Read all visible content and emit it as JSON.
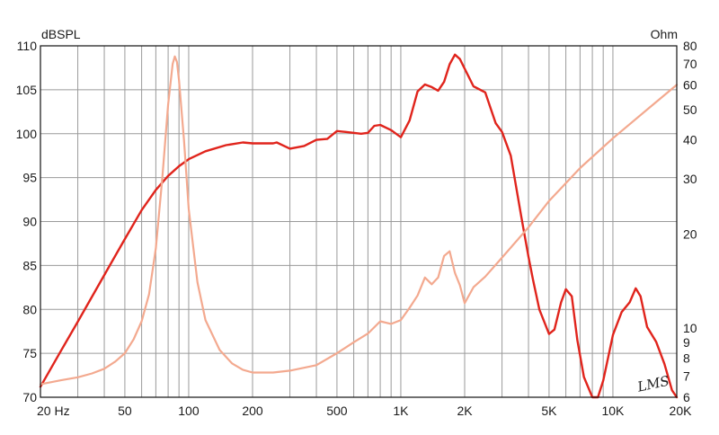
{
  "chart_data": {
    "type": "line",
    "left_axis_unit": "dBSPL",
    "right_axis_unit": "Ohm",
    "x_scale": "log",
    "xlim": [
      20,
      20000
    ],
    "ylim": [
      70,
      110
    ],
    "y2lim": [
      6,
      80
    ],
    "y2_scale": "log",
    "grid": true,
    "x_ticks": [
      {
        "v": 20,
        "label": "20  Hz"
      },
      {
        "v": 50,
        "label": "50"
      },
      {
        "v": 100,
        "label": "100"
      },
      {
        "v": 200,
        "label": "200"
      },
      {
        "v": 500,
        "label": "500"
      },
      {
        "v": 1000,
        "label": "1K"
      },
      {
        "v": 2000,
        "label": "2K"
      },
      {
        "v": 5000,
        "label": "5K"
      },
      {
        "v": 10000,
        "label": "10K"
      },
      {
        "v": 20000,
        "label": "20K"
      }
    ],
    "y_ticks": [
      {
        "v": 110,
        "label": "110"
      },
      {
        "v": 105,
        "label": "105"
      },
      {
        "v": 100,
        "label": "100"
      },
      {
        "v": 95,
        "label": "95"
      },
      {
        "v": 90,
        "label": "90"
      },
      {
        "v": 85,
        "label": "85"
      },
      {
        "v": 80,
        "label": "80"
      },
      {
        "v": 75,
        "label": "75"
      },
      {
        "v": 70,
        "label": "70"
      }
    ],
    "y2_ticks": [
      {
        "v": 80,
        "label": "80"
      },
      {
        "v": 70,
        "label": "70"
      },
      {
        "v": 60,
        "label": "60"
      },
      {
        "v": 50,
        "label": "50"
      },
      {
        "v": 40,
        "label": "40"
      },
      {
        "v": 30,
        "label": "30"
      },
      {
        "v": 20,
        "label": "20"
      },
      {
        "v": 10,
        "label": "10"
      },
      {
        "v": 9,
        "label": "9"
      },
      {
        "v": 8,
        "label": "8"
      },
      {
        "v": 7,
        "label": "7"
      },
      {
        "v": 6,
        "label": "6"
      }
    ],
    "series": [
      {
        "axis": "left",
        "color": "#e0241c",
        "x": [
          20,
          25,
          30,
          40,
          50,
          60,
          70,
          80,
          90,
          100,
          120,
          150,
          180,
          200,
          250,
          260,
          300,
          350,
          400,
          450,
          500,
          550,
          650,
          700,
          750,
          800,
          900,
          1000,
          1100,
          1200,
          1300,
          1400,
          1500,
          1600,
          1700,
          1800,
          1900,
          2000,
          2200,
          2500,
          2800,
          3000,
          3300,
          3700,
          4000,
          4200,
          4500,
          5000,
          5300,
          5700,
          6000,
          6400,
          6800,
          7300,
          8000,
          8500,
          9000,
          10000,
          11000,
          12000,
          12800,
          13500,
          14500,
          16000,
          17500,
          19000,
          20000
        ],
        "values": [
          71.2,
          75.3,
          78.6,
          83.9,
          88.0,
          91.3,
          93.6,
          95.2,
          96.3,
          97.1,
          98.0,
          98.7,
          99.0,
          98.9,
          98.9,
          99.0,
          98.3,
          98.6,
          99.3,
          99.4,
          100.3,
          100.2,
          100.0,
          100.1,
          100.9,
          101.0,
          100.4,
          99.6,
          101.5,
          104.8,
          105.6,
          105.3,
          104.9,
          105.9,
          107.9,
          109.0,
          108.5,
          107.4,
          105.4,
          104.7,
          101.2,
          100.2,
          97.5,
          90.5,
          86.0,
          83.4,
          80.0,
          77.2,
          77.7,
          80.8,
          82.3,
          81.5,
          76.5,
          72.3,
          70.0,
          70.0,
          71.9,
          77.1,
          79.7,
          80.8,
          82.4,
          81.5,
          78.0,
          76.3,
          73.8,
          70.8,
          70.0
        ]
      },
      {
        "axis": "right",
        "color": "#f3a98f",
        "x": [
          20,
          25,
          30,
          35,
          40,
          45,
          50,
          55,
          60,
          65,
          70,
          75,
          80,
          84,
          86,
          88,
          90,
          95,
          100,
          110,
          120,
          140,
          160,
          180,
          200,
          250,
          300,
          400,
          500,
          600,
          700,
          800,
          900,
          1000,
          1100,
          1200,
          1300,
          1400,
          1500,
          1600,
          1700,
          1800,
          1900,
          2000,
          2200,
          2500,
          3000,
          4000,
          5000,
          7000,
          10000,
          15000,
          20000
        ],
        "values": [
          6.6,
          6.8,
          6.95,
          7.15,
          7.4,
          7.8,
          8.3,
          9.2,
          10.5,
          12.8,
          18.0,
          30.0,
          52.0,
          70.0,
          74.0,
          71.0,
          62.0,
          40.0,
          24.0,
          14.0,
          10.6,
          8.5,
          7.7,
          7.35,
          7.2,
          7.2,
          7.3,
          7.6,
          8.3,
          9.0,
          9.6,
          10.5,
          10.3,
          10.6,
          11.6,
          12.7,
          14.5,
          13.8,
          14.5,
          17.0,
          17.6,
          15.0,
          13.7,
          12.0,
          13.5,
          14.6,
          16.8,
          21.0,
          25.5,
          32.5,
          40.5,
          51.0,
          60.0
        ]
      }
    ]
  },
  "watermark": "LMS"
}
